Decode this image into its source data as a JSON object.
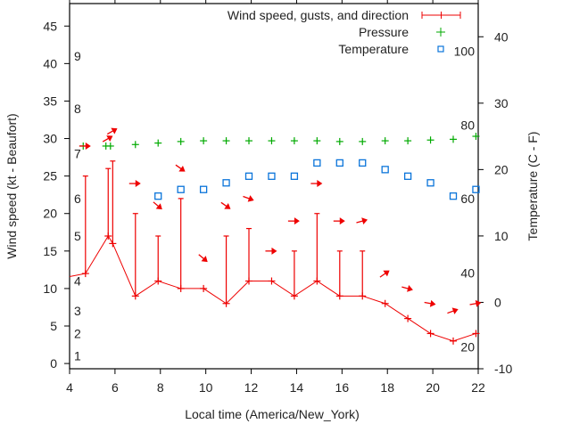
{
  "chart_data": {
    "type": "line",
    "title": "",
    "xlabel": "Local time (America/New_York)",
    "ylabel_left": "Wind speed (kt - Beaufort)",
    "ylabel_right": "Temperature (C - F)",
    "xlim": [
      4,
      22
    ],
    "ylim_left": [
      -0.7,
      48
    ],
    "ylim_right": [
      -10,
      45
    ],
    "x_ticks": [
      4,
      6,
      8,
      10,
      12,
      14,
      16,
      18,
      20,
      22
    ],
    "y_left_ticks": [
      0,
      5,
      10,
      15,
      20,
      25,
      30,
      35,
      40,
      45
    ],
    "y_right_ticks": [
      -10,
      0,
      10,
      20,
      30,
      40
    ],
    "beaufort_labels": [
      {
        "label": "1",
        "kt": 1
      },
      {
        "label": "2",
        "kt": 4
      },
      {
        "label": "3",
        "kt": 7
      },
      {
        "label": "4",
        "kt": 11
      },
      {
        "label": "5",
        "kt": 17
      },
      {
        "label": "6",
        "kt": 22
      },
      {
        "label": "7",
        "kt": 28
      },
      {
        "label": "8",
        "kt": 34
      },
      {
        "label": "9",
        "kt": 41
      }
    ],
    "fahrenheit_labels": [
      {
        "label": "20",
        "c": -6.7
      },
      {
        "label": "40",
        "c": 4.4
      },
      {
        "label": "60",
        "c": 15.6
      },
      {
        "label": "80",
        "c": 26.7
      },
      {
        "label": "100",
        "c": 37.8
      }
    ],
    "legend": [
      {
        "label": "Wind speed, gusts, and direction",
        "color": "#ee0000",
        "marker": "errorbar"
      },
      {
        "label": "Pressure",
        "color": "#00aa00",
        "marker": "plus"
      },
      {
        "label": "Temperature",
        "color": "#0a74da",
        "marker": "square"
      }
    ],
    "legend_position": "top-right",
    "series": [
      {
        "name": "Wind speed",
        "axis": "left",
        "color": "#ee0000",
        "x": [
          4.0,
          4.7,
          5.7,
          5.9,
          6.9,
          7.9,
          8.9,
          9.9,
          10.9,
          11.9,
          12.9,
          13.9,
          14.9,
          15.9,
          16.9,
          17.9,
          18.9,
          19.9,
          20.9,
          21.9
        ],
        "y": [
          11.6,
          12,
          17,
          16,
          9,
          11,
          10,
          10,
          8,
          11,
          11,
          9,
          11,
          9,
          9,
          8,
          6,
          4,
          3,
          4
        ],
        "gust": [
          null,
          25,
          26,
          27,
          20,
          17,
          22,
          null,
          17,
          18,
          null,
          15,
          20,
          15,
          15,
          null,
          null,
          null,
          null,
          null
        ]
      },
      {
        "name": "Wind direction",
        "axis": "left",
        "color": "#ee0000",
        "x": [
          4.7,
          5.7,
          5.9,
          6.9,
          7.9,
          8.9,
          9.9,
          10.9,
          11.9,
          12.9,
          13.9,
          14.9,
          15.9,
          16.9,
          17.9,
          18.9,
          19.9,
          20.9,
          21.9
        ],
        "y": [
          29,
          30,
          31,
          24,
          21,
          26,
          14,
          21,
          22,
          15,
          19,
          24,
          19,
          19,
          12,
          10,
          8,
          7,
          8
        ],
        "angle_deg": [
          0,
          -30,
          -30,
          0,
          40,
          35,
          40,
          35,
          20,
          0,
          0,
          0,
          0,
          -15,
          -35,
          15,
          10,
          -20,
          -10
        ]
      },
      {
        "name": "Pressure",
        "axis": "left",
        "color": "#00aa00",
        "x": [
          4.6,
          5.6,
          5.8,
          6.9,
          7.9,
          8.9,
          9.9,
          10.9,
          11.9,
          12.9,
          13.9,
          14.9,
          15.9,
          16.9,
          17.9,
          18.9,
          19.9,
          20.9,
          21.9
        ],
        "y": [
          29.0,
          29.0,
          29.0,
          29.2,
          29.4,
          29.6,
          29.7,
          29.7,
          29.7,
          29.7,
          29.7,
          29.7,
          29.6,
          29.6,
          29.7,
          29.7,
          29.8,
          29.9,
          30.3
        ]
      },
      {
        "name": "Temperature",
        "axis": "right",
        "color": "#0a74da",
        "x": [
          7.9,
          8.9,
          9.9,
          10.9,
          11.9,
          12.9,
          13.9,
          14.9,
          15.9,
          16.9,
          17.9,
          18.9,
          19.9,
          20.9,
          21.9
        ],
        "y": [
          16.0,
          17.0,
          17.0,
          18.0,
          19.0,
          19.0,
          19.0,
          21.0,
          21.0,
          21.0,
          20.0,
          19.0,
          18.0,
          16.0,
          17.0
        ]
      }
    ]
  }
}
